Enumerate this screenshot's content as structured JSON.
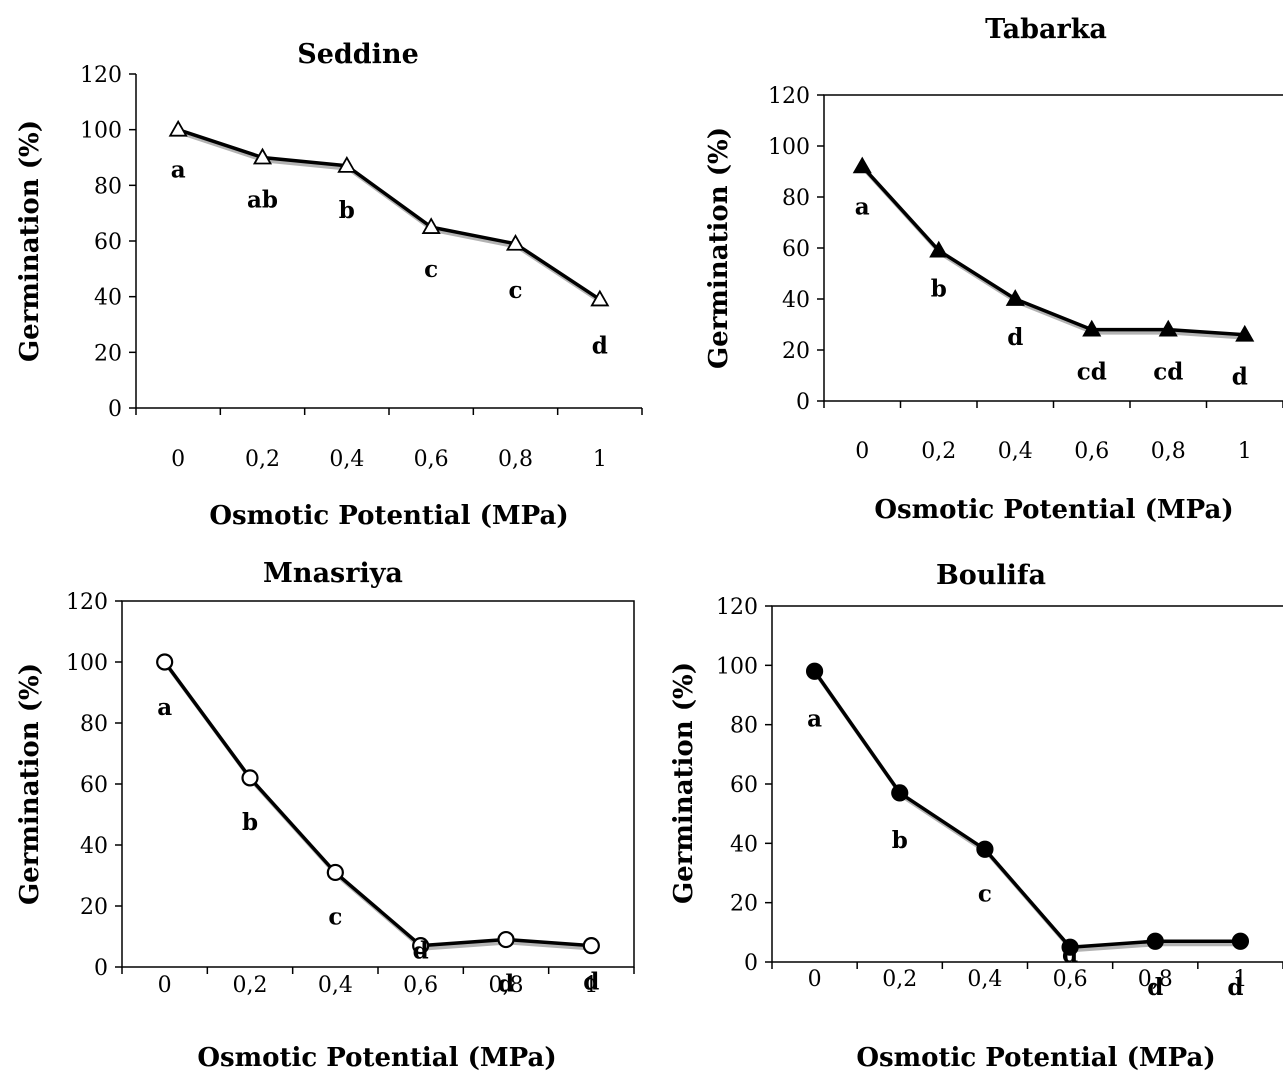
{
  "chart_data": [
    {
      "type": "line",
      "title": "Seddine",
      "xlabel": "Osmotic Potential (MPa)",
      "ylabel": "Germination (%)",
      "categories": [
        "0",
        "0,2",
        "0,4",
        "0,6",
        "0,8",
        "1"
      ],
      "values": [
        100,
        90,
        87,
        65,
        59,
        39
      ],
      "letters": [
        "a",
        "ab",
        "b",
        "c",
        "c",
        "d"
      ],
      "marker": "triangle-open",
      "ylim": [
        0,
        120
      ],
      "yticks": [
        "0",
        "20",
        "40",
        "60",
        "80",
        "100",
        "120"
      ],
      "grid": false,
      "line_color": "#000000"
    },
    {
      "type": "line",
      "title": "Tabarka",
      "xlabel": "Osmotic Potential (MPa)",
      "ylabel": "Germination (%)",
      "categories": [
        "0",
        "0,2",
        "0,4",
        "0,6",
        "0,8",
        "1"
      ],
      "values": [
        92,
        59,
        40,
        28,
        28,
        26
      ],
      "letters": [
        "a",
        "b",
        "d",
        "cd",
        "cd",
        "d"
      ],
      "marker": "triangle-filled",
      "ylim": [
        0,
        120
      ],
      "yticks": [
        "0",
        "20",
        "40",
        "60",
        "80",
        "100",
        "120"
      ],
      "grid": false,
      "line_color": "#000000"
    },
    {
      "type": "line",
      "title": "Mnasriya",
      "xlabel": "Osmotic Potential (MPa)",
      "ylabel": "Germination (%)",
      "categories": [
        "0",
        "0,2",
        "0,4",
        "0,6",
        "0,8",
        "1"
      ],
      "values": [
        100,
        62,
        31,
        7,
        9,
        7
      ],
      "letters": [
        "a",
        "b",
        "c",
        "d",
        "d",
        "d"
      ],
      "marker": "circle-open",
      "ylim": [
        0,
        120
      ],
      "yticks": [
        "0",
        "20",
        "40",
        "60",
        "80",
        "100",
        "120"
      ],
      "grid": false,
      "line_color": "#000000"
    },
    {
      "type": "line",
      "title": "Boulifa",
      "xlabel": "Osmotic Potential (MPa)",
      "ylabel": "Germination (%)",
      "categories": [
        "0",
        "0,2",
        "0,4",
        "0,6",
        "0,8",
        "1"
      ],
      "values": [
        98,
        57,
        38,
        5,
        7,
        7
      ],
      "letters": [
        "a",
        "b",
        "c",
        "d",
        "d",
        "d"
      ],
      "marker": "circle-filled",
      "ylim": [
        0,
        120
      ],
      "yticks": [
        "0",
        "20",
        "40",
        "60",
        "80",
        "100",
        "120"
      ],
      "grid": false,
      "line_color": "#000000"
    }
  ]
}
